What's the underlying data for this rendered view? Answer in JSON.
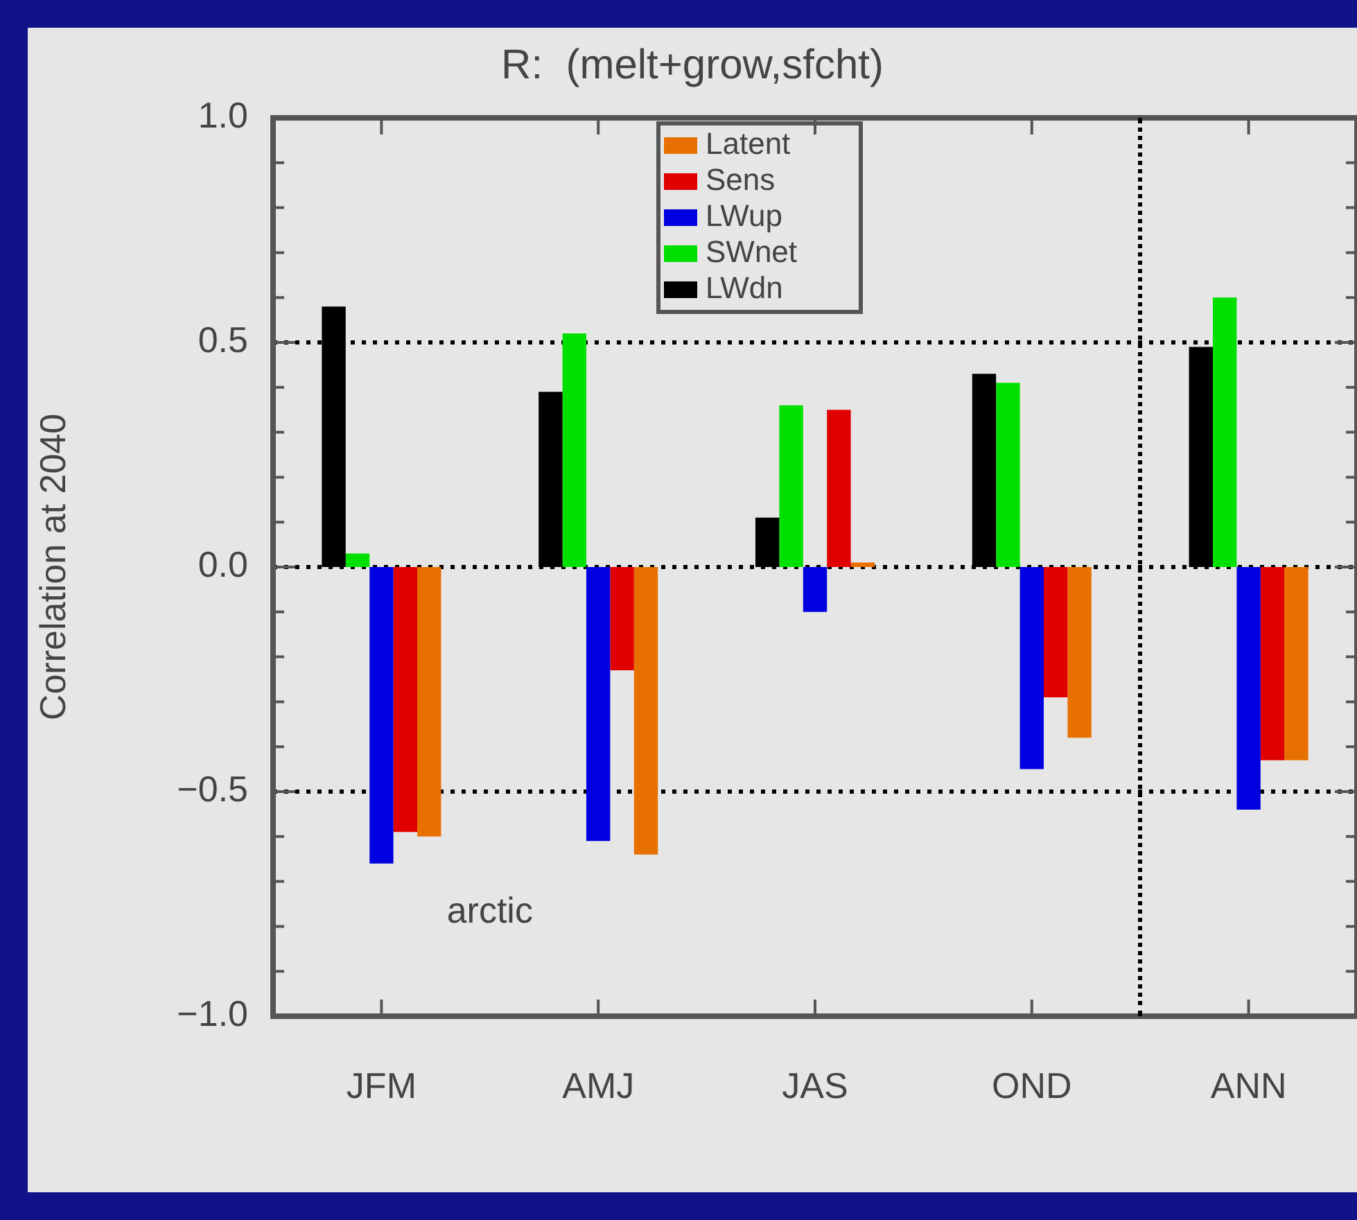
{
  "chart_data": {
    "type": "bar",
    "title": "R:  (melt+grow,sfcht)",
    "ylabel": "Correlation at 2040",
    "categories": [
      "JFM",
      "AMJ",
      "JAS",
      "OND",
      "ANN"
    ],
    "series": [
      {
        "name": "LWdn",
        "color": "#000000",
        "values": [
          0.58,
          0.39,
          0.11,
          0.43,
          0.49
        ]
      },
      {
        "name": "SWnet",
        "color": "#00e000",
        "values": [
          0.03,
          0.52,
          0.36,
          0.41,
          0.6
        ]
      },
      {
        "name": "LWup",
        "color": "#0000e0",
        "values": [
          -0.66,
          -0.61,
          -0.1,
          -0.45,
          -0.54
        ]
      },
      {
        "name": "Sens",
        "color": "#e00000",
        "values": [
          -0.59,
          -0.23,
          0.35,
          -0.29,
          -0.43
        ]
      },
      {
        "name": "Latent",
        "color": "#e87000",
        "values": [
          -0.6,
          -0.64,
          0.01,
          -0.38,
          -0.43
        ]
      }
    ],
    "ylim": [
      -1,
      1
    ],
    "yticks": [
      {
        "value": -1,
        "label": "−1.0"
      },
      {
        "value": -0.9,
        "label": null
      },
      {
        "value": -0.8,
        "label": null
      },
      {
        "value": -0.7,
        "label": null
      },
      {
        "value": -0.6,
        "label": null
      },
      {
        "value": -0.5,
        "label": "−0.5"
      },
      {
        "value": -0.4,
        "label": null
      },
      {
        "value": -0.3,
        "label": null
      },
      {
        "value": -0.2,
        "label": null
      },
      {
        "value": -0.1,
        "label": null
      },
      {
        "value": 0,
        "label": "0.0"
      },
      {
        "value": 0.1,
        "label": null
      },
      {
        "value": 0.2,
        "label": null
      },
      {
        "value": 0.3,
        "label": null
      },
      {
        "value": 0.4,
        "label": null
      },
      {
        "value": 0.5,
        "label": "0.5"
      },
      {
        "value": 0.6,
        "label": null
      },
      {
        "value": 0.7,
        "label": null
      },
      {
        "value": 0.8,
        "label": null
      },
      {
        "value": 0.9,
        "label": null
      },
      {
        "value": 1,
        "label": "1.0"
      }
    ],
    "ref_lines": [
      {
        "axis": "y",
        "value": 0.5,
        "line_style": "dotted"
      },
      {
        "axis": "y",
        "value": 0,
        "line_style": "dotted"
      },
      {
        "axis": "y",
        "value": -0.5,
        "line_style": "dotted"
      }
    ],
    "annotations": [
      "arctic"
    ],
    "legend": "top"
  }
}
